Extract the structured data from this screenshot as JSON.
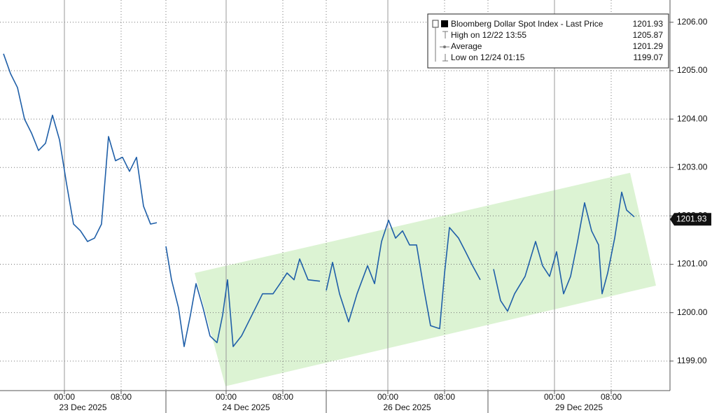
{
  "chart_data": {
    "type": "line",
    "series": [
      {
        "name": "Bloomberg Dollar Spot Index - Last Price",
        "color": "#1f5fa8",
        "values": [
          1205.35,
          1204.94,
          1204.65,
          1204.0,
          1203.71,
          1203.35,
          1203.5,
          1204.08,
          1203.57,
          1202.67,
          1201.83,
          1201.69,
          1201.47,
          1201.54,
          1201.83,
          1203.64,
          1203.14,
          1203.21,
          1202.92,
          1203.21,
          1202.2,
          1201.83,
          1201.86,
          null,
          1201.37,
          1200.68,
          1200.1,
          1199.3,
          1199.95,
          1200.6,
          1200.1,
          1199.52,
          1199.38,
          1199.95,
          1200.68,
          1199.3,
          1199.52,
          1199.81,
          1200.1,
          1200.39,
          1200.39,
          1200.6,
          1200.82,
          1200.68,
          1201.11,
          1200.68,
          1200.65,
          null,
          1200.46,
          1201.04,
          1200.39,
          1199.81,
          1200.39,
          1200.97,
          1200.6,
          1201.47,
          1201.91,
          1201.54,
          1201.69,
          1201.4,
          1201.4,
          1200.53,
          1199.73,
          1199.67,
          1200.82,
          1201.76,
          1201.54,
          1201.26,
          1200.97,
          1200.68,
          null,
          1200.9,
          1200.25,
          1200.03,
          1200.39,
          1200.75,
          1201.47,
          1200.97,
          1200.75,
          1201.26,
          1200.39,
          1200.75,
          1201.47,
          1202.27,
          1201.69,
          1201.4,
          1200.39,
          1200.82,
          1201.54,
          1202.49,
          1202.12,
          1201.98
        ]
      }
    ],
    "x": [
      0.5,
      1.5,
      2.5,
      3.5,
      4.5,
      5.5,
      6.5,
      7.5,
      8.5,
      9.5,
      10.5,
      11.5,
      12.5,
      13.5,
      14.5,
      15.5,
      16.5,
      17.5,
      18.5,
      19.5,
      20.5,
      21.5,
      22.4,
      23.0,
      23.7,
      24.5,
      25.5,
      26.3,
      27.2,
      28.0,
      29.0,
      30.0,
      31.0,
      31.8,
      32.5,
      33.3,
      34.5,
      35.5,
      36.5,
      37.5,
      39.0,
      40.0,
      41.0,
      42.0,
      42.8,
      44.0,
      45.7,
      46.1,
      46.6,
      47.5,
      48.5,
      49.8,
      51.0,
      52.5,
      53.5,
      54.5,
      55.5,
      56.5,
      57.5,
      58.5,
      59.5,
      60.5,
      61.5,
      62.8,
      63.5,
      64.2,
      65.5,
      66.5,
      67.5,
      68.6,
      69.5,
      70.5,
      71.5,
      72.5,
      73.5,
      75.0,
      76.5,
      77.5,
      78.5,
      79.5,
      80.5,
      81.5,
      82.5,
      83.5,
      84.5,
      85.5,
      86.0,
      86.8,
      87.8,
      88.8,
      89.5,
      90.6
    ],
    "xlim": [
      0,
      95.7
    ],
    "ylim": [
      1198.39,
      1206.46
    ],
    "yticks": [
      {
        "value": 1199,
        "label": "1199.00"
      },
      {
        "value": 1200,
        "label": "1200.00"
      },
      {
        "value": 1201,
        "label": "1201.00"
      },
      {
        "value": 1202,
        "label": "1202.00"
      },
      {
        "value": 1203,
        "label": "1203.00"
      },
      {
        "value": 1204,
        "label": "1204.00"
      },
      {
        "value": 1205,
        "label": "1205.00"
      },
      {
        "value": 1206,
        "label": "1206.00"
      }
    ],
    "xticks": [
      {
        "value": 9.2,
        "label": "00:00"
      },
      {
        "value": 17.3,
        "label": "08:00"
      },
      {
        "value": 32.3,
        "label": "00:00"
      },
      {
        "value": 40.4,
        "label": "08:00"
      },
      {
        "value": 55.4,
        "label": "00:00"
      },
      {
        "value": 63.5,
        "label": "08:00"
      },
      {
        "value": 79.2,
        "label": "00:00"
      },
      {
        "value": 87.3,
        "label": "08:00"
      }
    ],
    "date_groups": [
      {
        "label": "23 Dec 2025",
        "start": 0,
        "end": 23.7
      },
      {
        "label": "24 Dec 2025",
        "start": 23.7,
        "end": 46.6
      },
      {
        "label": "26 Dec 2025",
        "start": 46.6,
        "end": 69.7
      },
      {
        "label": "29 Dec 2025",
        "start": 69.7,
        "end": 95.7
      }
    ],
    "last_price": 1201.93,
    "legend": [
      {
        "label": "High on 12/22 13:55",
        "value": 1205.87
      },
      {
        "label": "Average",
        "value": 1201.29
      },
      {
        "label": "Low on 12/24 01:15",
        "value": 1199.07
      }
    ],
    "channel": {
      "color": "#dcf3d3",
      "x": [
        27.8,
        90.0,
        93.7,
        32.2
      ],
      "y": [
        1200.82,
        1202.89,
        1200.56,
        1198.48
      ]
    },
    "grid": true
  }
}
